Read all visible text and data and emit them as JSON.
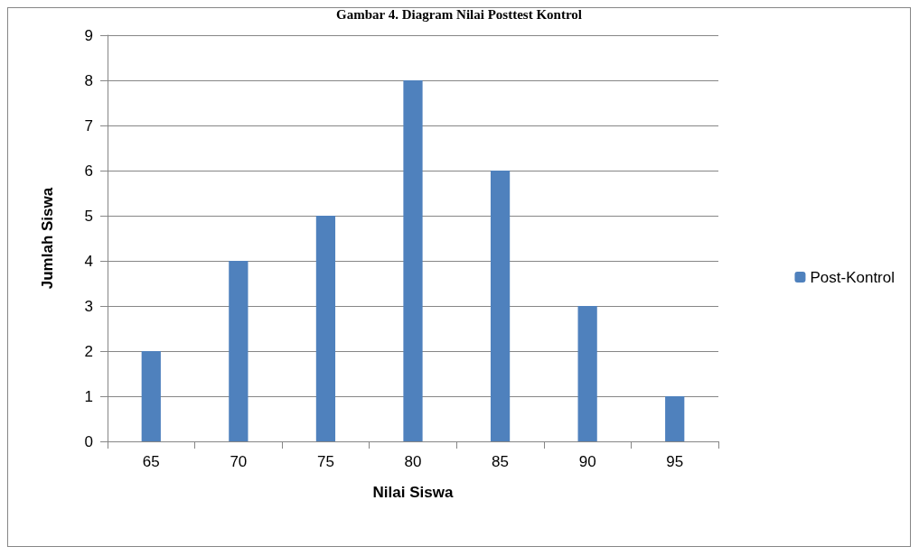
{
  "chart_data": {
    "type": "bar",
    "title": "Gambar 4. Diagram Nilai Posttest Kontrol",
    "xlabel": "Nilai Siswa",
    "ylabel": "Jumlah Siswa",
    "categories": [
      "65",
      "70",
      "75",
      "80",
      "85",
      "90",
      "95"
    ],
    "series": [
      {
        "name": "Post-Kontrol",
        "color": "#4f81bd",
        "values": [
          2,
          4,
          5,
          8,
          6,
          3,
          1
        ]
      }
    ],
    "ylim": [
      0,
      9
    ],
    "yticks": [
      0,
      1,
      2,
      3,
      4,
      5,
      6,
      7,
      8,
      9
    ],
    "grid": "y",
    "legend": "right"
  }
}
